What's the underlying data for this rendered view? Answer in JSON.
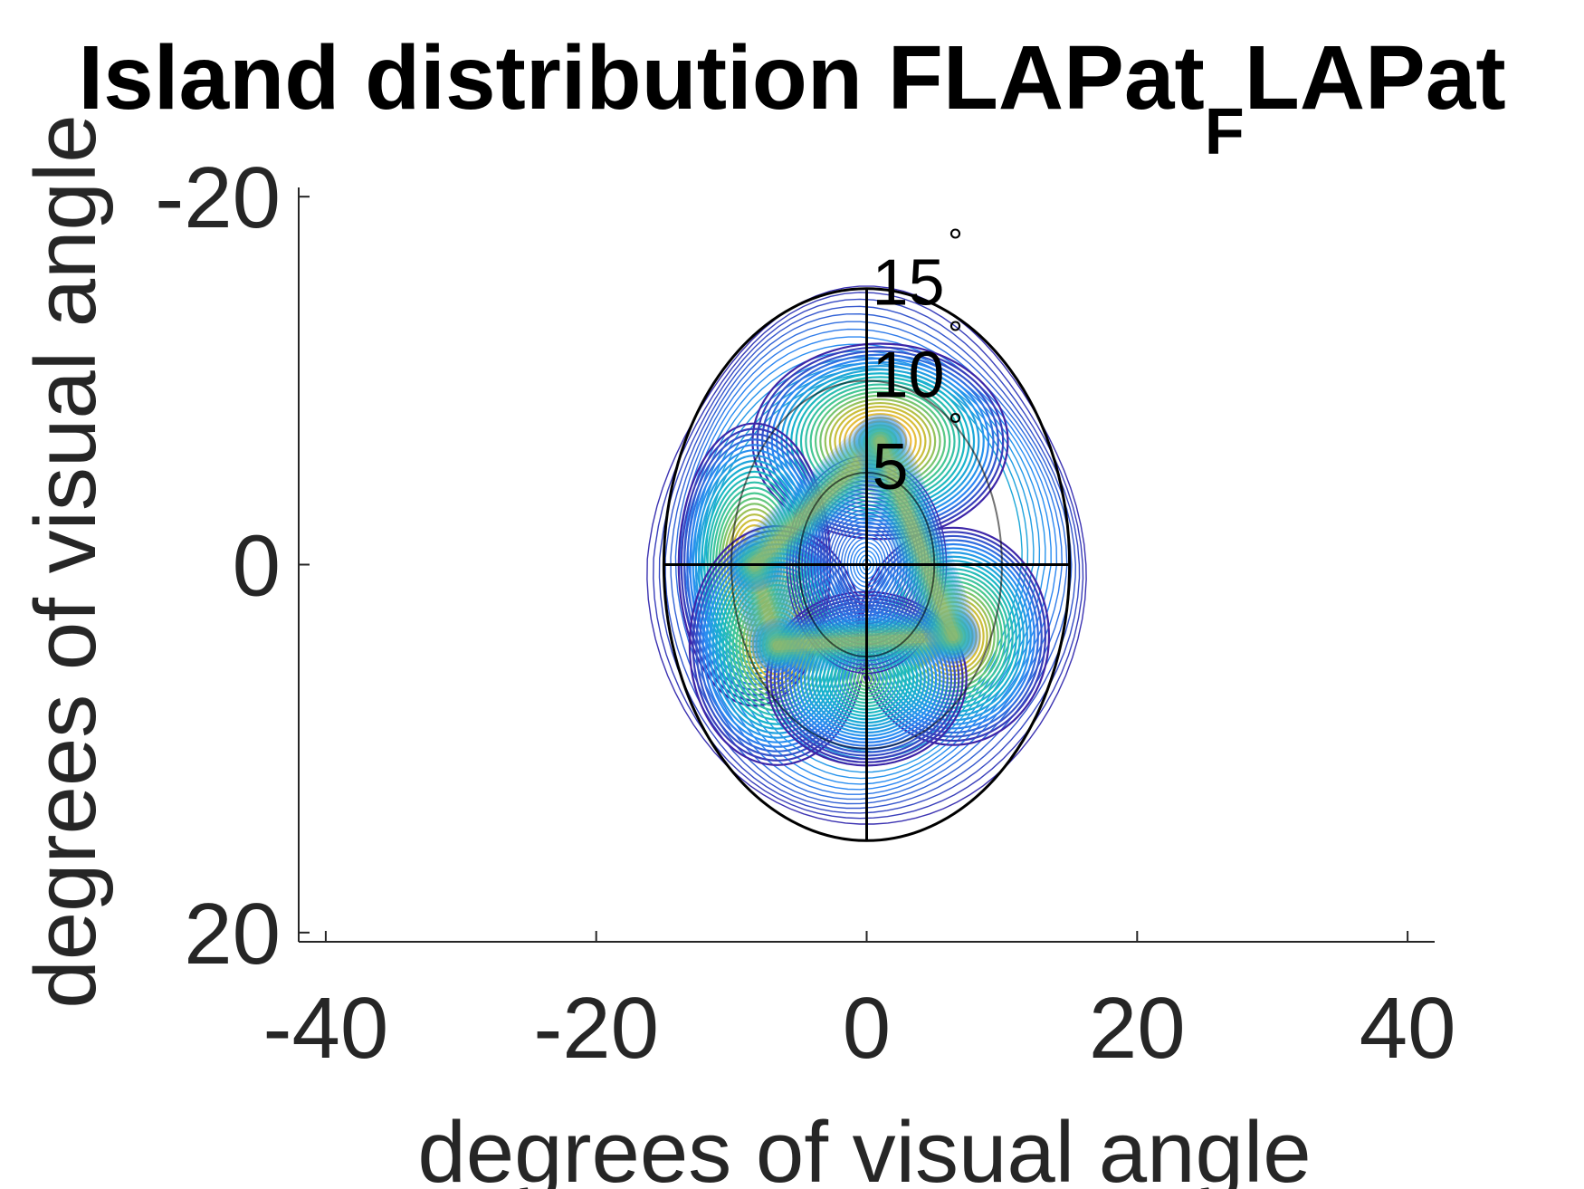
{
  "chart_data": {
    "type": "contour",
    "title_main": "Island distribution FLAPat",
    "title_subscript": "F",
    "title_tail": "LAPat",
    "xlabel": "degrees of visual angle",
    "ylabel": "degrees of visual angle",
    "xlim": [
      -42,
      42
    ],
    "ylim": [
      -20.5,
      20.5
    ],
    "y_reversed": true,
    "xticks": [
      -40,
      -20,
      0,
      20,
      40
    ],
    "xtick_labels": [
      "-40",
      "-20",
      "0",
      "20",
      "40"
    ],
    "yticks": [
      -20,
      0,
      20
    ],
    "ytick_labels": [
      "-20",
      "0",
      "20"
    ],
    "polar_rings": [
      {
        "radius": 5,
        "label": "5"
      },
      {
        "radius": 10,
        "label": "10"
      },
      {
        "radius": 15,
        "label": "15"
      }
    ],
    "degree_symbol": "°",
    "colormap": [
      "#3d26a8",
      "#2c8bf5",
      "#17b6c9",
      "#4bc98e",
      "#c7be3b",
      "#fdbd3c",
      "#f9fb15"
    ],
    "density_peaks": [
      {
        "x": 1,
        "y": -6.7,
        "amplitude": 1.0,
        "sx": 3.2,
        "sy": 1.8
      },
      {
        "x": -8.3,
        "y": 0,
        "amplitude": 0.95,
        "sx": 1.9,
        "sy": 2.6
      },
      {
        "x": -6.6,
        "y": 4.4,
        "amplitude": 0.9,
        "sx": 2.2,
        "sy": 2.2
      },
      {
        "x": 6.4,
        "y": 3.9,
        "amplitude": 0.95,
        "sx": 2.4,
        "sy": 2.0
      },
      {
        "x": 0,
        "y": 6.2,
        "amplitude": 0.55,
        "sx": 2.5,
        "sy": 1.6
      },
      {
        "x": 0,
        "y": 0,
        "amplitude": 0.18,
        "sx": 2.0,
        "sy": 2.0
      }
    ]
  }
}
